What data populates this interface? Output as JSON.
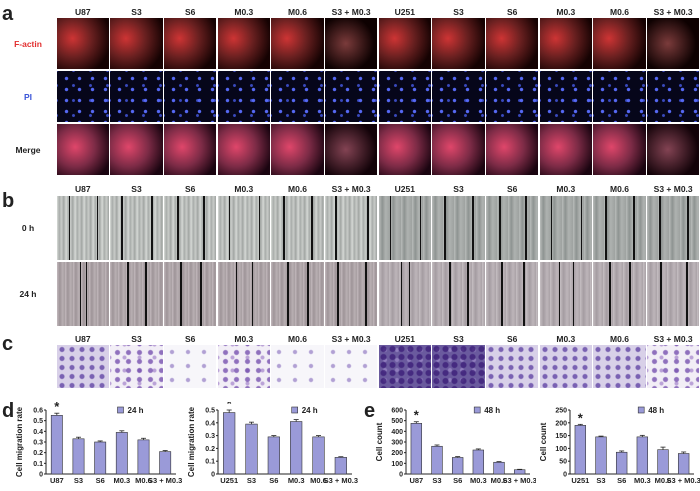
{
  "panels": {
    "a": {
      "letter": "a",
      "columns": [
        "U87",
        "S3",
        "S6",
        "M0.3",
        "M0.6",
        "S3 + M0.3",
        "U251",
        "S3",
        "S6",
        "M0.3",
        "M0.6",
        "S3 + M0.3"
      ],
      "rows": [
        {
          "label": "F-actin",
          "color": "#e23030"
        },
        {
          "label": "PI",
          "color": "#3a55d8"
        },
        {
          "label": "Merge",
          "color": "#222222"
        }
      ]
    },
    "b": {
      "letter": "b",
      "columns": [
        "U87",
        "S3",
        "S6",
        "M0.3",
        "M0.6",
        "S3 + M0.3",
        "U251",
        "S3",
        "S6",
        "M0.3",
        "M0.6",
        "S3 + M0.3"
      ],
      "rows": [
        {
          "label": "0 h"
        },
        {
          "label": "24 h"
        }
      ]
    },
    "c": {
      "letter": "c",
      "columns": [
        "U87",
        "S3",
        "S6",
        "M0.3",
        "M0.6",
        "S3 + M0.3",
        "U251",
        "S3",
        "S6",
        "M0.3",
        "M0.6",
        "S3 + M0.3"
      ]
    },
    "d": {
      "letter": "d"
    },
    "e": {
      "letter": "e"
    }
  },
  "chart_data": [
    {
      "type": "bar",
      "panel": "d",
      "categories": [
        "U87",
        "S3",
        "S6",
        "M0.3",
        "M0.6",
        "S3 + M0.3"
      ],
      "series": [
        {
          "name": "24 h",
          "values": [
            0.55,
            0.33,
            0.3,
            0.39,
            0.32,
            0.21
          ],
          "errors": [
            0.02,
            0.015,
            0.01,
            0.015,
            0.015,
            0.01
          ]
        }
      ],
      "ylabel": "Cell migration rate",
      "ylim": [
        0,
        0.6
      ],
      "yticks": [
        "0",
        "0.1",
        "0.2",
        "0.3",
        "0.4",
        "0.5",
        "0.6"
      ],
      "annotation": "*",
      "annotation_index": 0,
      "legend": "top-right",
      "color": "#9a9ad8"
    },
    {
      "type": "bar",
      "panel": "d",
      "categories": [
        "U251",
        "S3",
        "S6",
        "M0.3",
        "M0.6",
        "S3 + M0.3"
      ],
      "series": [
        {
          "name": "24 h",
          "values": [
            0.48,
            0.39,
            0.29,
            0.41,
            0.29,
            0.13
          ],
          "errors": [
            0.02,
            0.015,
            0.01,
            0.015,
            0.01,
            0.005
          ]
        }
      ],
      "ylabel": "Cell migration rate",
      "ylim": [
        0,
        0.5
      ],
      "yticks": [
        "0",
        "0.1",
        "0.2",
        "0.3",
        "0.4",
        "0.5"
      ],
      "annotation": "*",
      "annotation_index": 0,
      "legend": "top-right",
      "color": "#9a9ad8"
    },
    {
      "type": "bar",
      "panel": "e",
      "categories": [
        "U87",
        "S3",
        "S6",
        "M0.3",
        "M0.6",
        "S3 + M0.3"
      ],
      "series": [
        {
          "name": "48 h",
          "values": [
            475,
            260,
            155,
            225,
            110,
            40
          ],
          "errors": [
            15,
            12,
            8,
            10,
            6,
            4
          ]
        }
      ],
      "ylabel": "Cell count",
      "ylim": [
        0,
        600
      ],
      "yticks": [
        "0",
        "100",
        "200",
        "300",
        "400",
        "500",
        "600"
      ],
      "annotation": "*",
      "annotation_index": 0,
      "legend": "top-right",
      "color": "#9a9ad8"
    },
    {
      "type": "bar",
      "panel": "e",
      "categories": [
        "U251",
        "S3",
        "S6",
        "M0.3",
        "M0.6",
        "S3 + M0.3"
      ],
      "series": [
        {
          "name": "48 h",
          "values": [
            190,
            145,
            85,
            145,
            95,
            80
          ],
          "errors": [
            4,
            3,
            5,
            6,
            10,
            6
          ]
        }
      ],
      "ylabel": "Cell count",
      "ylim": [
        0,
        250
      ],
      "yticks": [
        "0",
        "50",
        "100",
        "150",
        "200",
        "250"
      ],
      "annotation": "*",
      "annotation_index": 0,
      "legend": "top-right",
      "color": "#9a9ad8"
    }
  ]
}
